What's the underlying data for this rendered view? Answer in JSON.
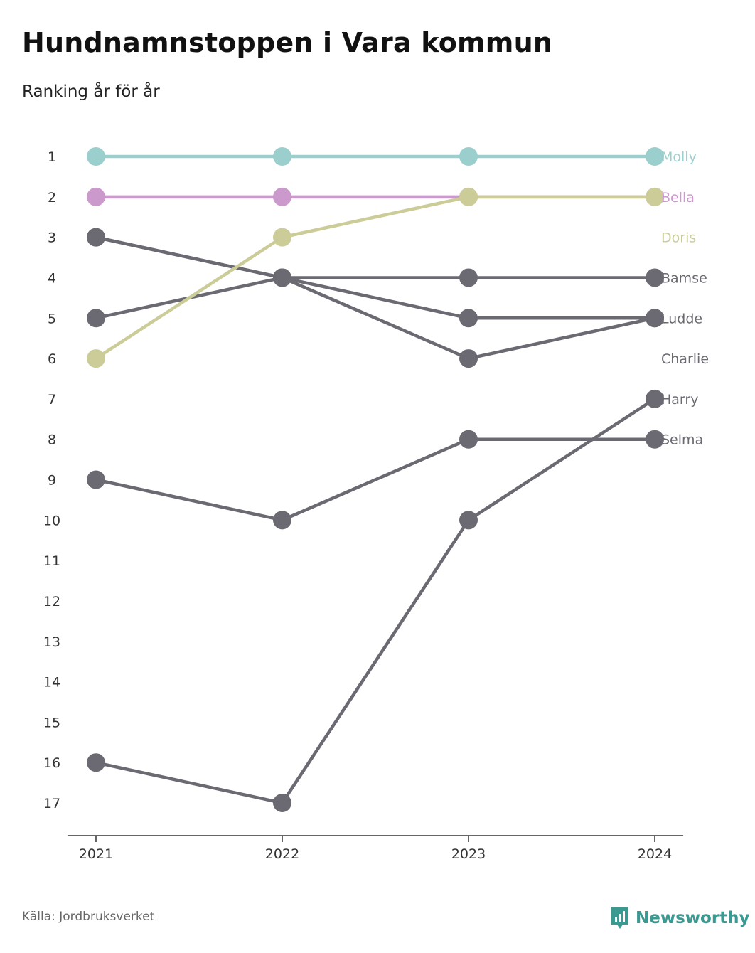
{
  "title": "Hundnamnstoppen i Vara kommun",
  "subtitle": "Ranking år för år",
  "source": "Källa: Jordbruksverket",
  "brand": {
    "name": "Newsworthy",
    "icon": "newsworthy-logo-icon",
    "color": "#3a9a92"
  },
  "chart_data": {
    "type": "line",
    "subtype": "bump",
    "x": [
      "2021",
      "2022",
      "2023",
      "2024"
    ],
    "y_ticks": [
      "1",
      "2",
      "3",
      "4",
      "5",
      "6",
      "7",
      "8",
      "9",
      "10",
      "11",
      "12",
      "13",
      "14",
      "15",
      "16",
      "17"
    ],
    "ylim": [
      1,
      17
    ],
    "y_inverted": true,
    "grid": false,
    "series": [
      {
        "name": "Molly",
        "color": "#9bcfcd",
        "values": [
          1,
          1,
          1,
          1
        ]
      },
      {
        "name": "Bella",
        "color": "#cc99cc",
        "values": [
          2,
          2,
          2,
          2
        ]
      },
      {
        "name": "Doris",
        "color": "#cccc99",
        "values": [
          6,
          3,
          2,
          2
        ]
      },
      {
        "name": "Bamse",
        "color": "#6b6a72",
        "values": [
          3,
          4,
          4,
          4
        ]
      },
      {
        "name": "Ludde",
        "color": "#6b6a72",
        "values": [
          5,
          4,
          5,
          5
        ]
      },
      {
        "name": "Charlie",
        "color": "#6b6a72",
        "values": [
          3,
          4,
          6,
          5
        ]
      },
      {
        "name": "Harry",
        "color": "#6b6a72",
        "values": [
          16,
          17,
          10,
          7
        ]
      },
      {
        "name": "Selma",
        "color": "#6b6a72",
        "values": [
          9,
          10,
          8,
          8
        ]
      }
    ],
    "label_ranks": {
      "Molly": 1,
      "Bella": 2,
      "Doris": 3,
      "Bamse": 4,
      "Ludde": 5,
      "Charlie": 6,
      "Harry": 7,
      "Selma": 8
    }
  }
}
